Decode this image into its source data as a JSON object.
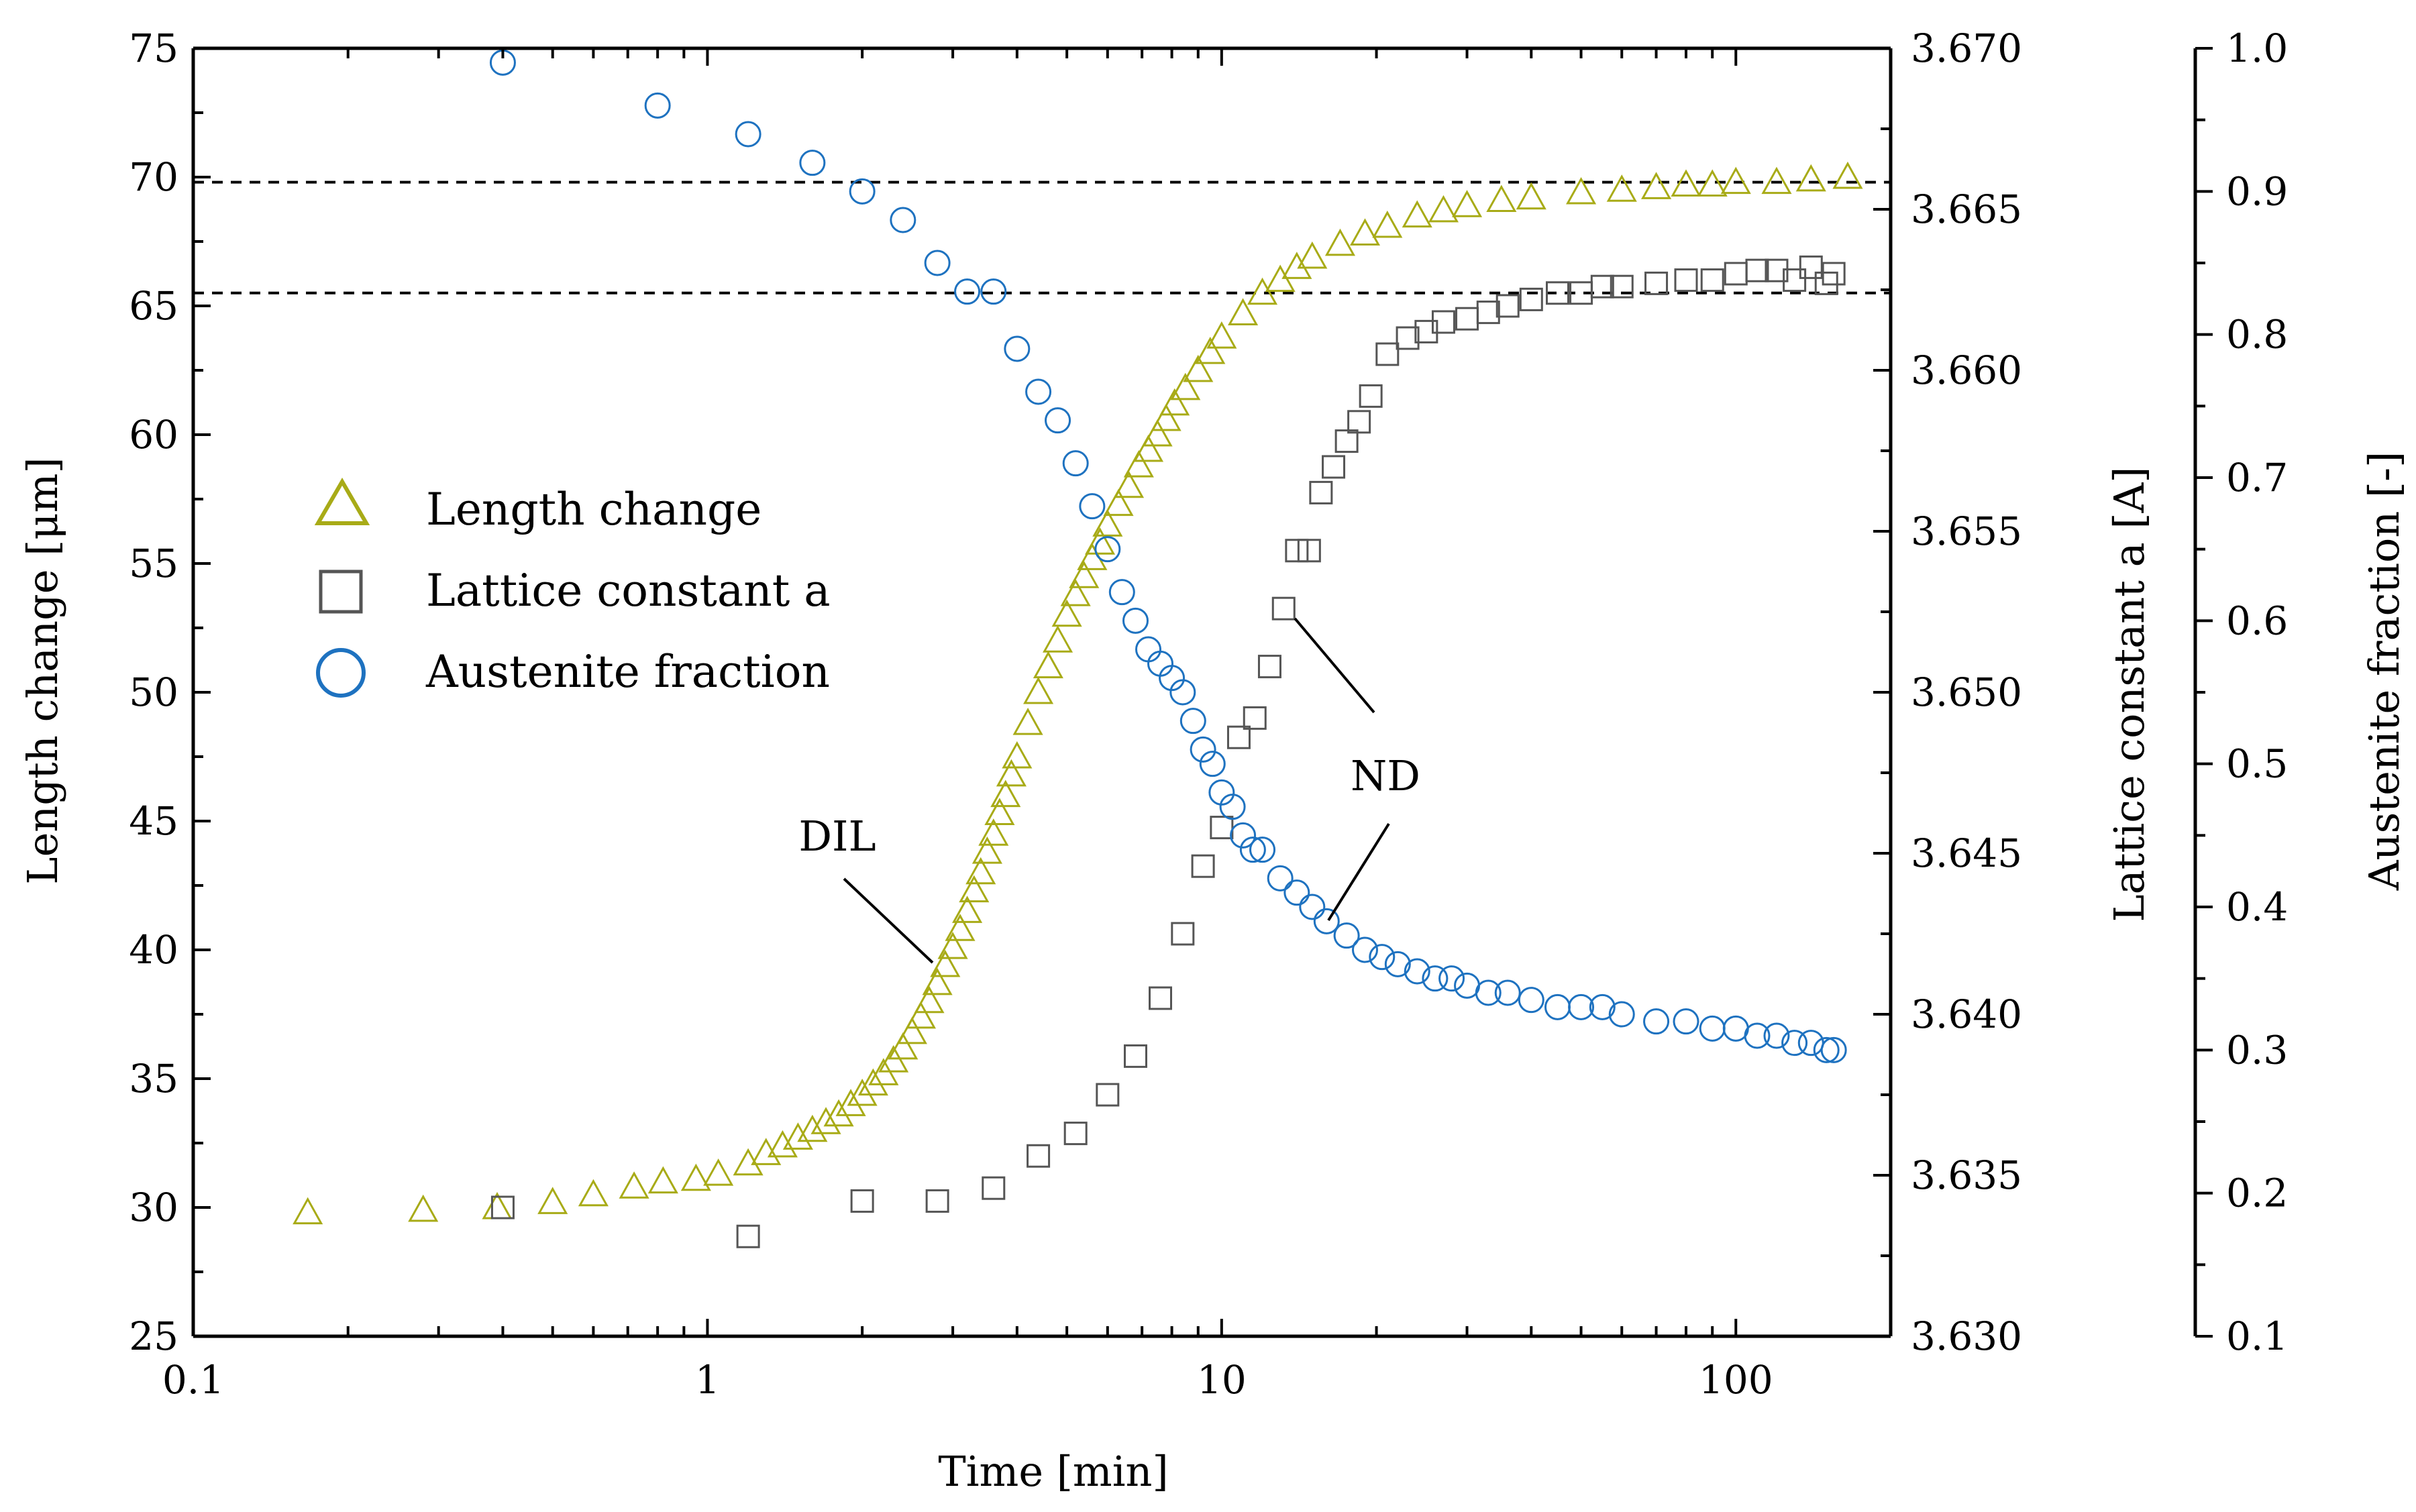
{
  "chart_data": {
    "type": "scatter",
    "xlabel": "Time [min]",
    "ylabel_left": "Length change [μm]",
    "ylabel_right1": "Lattice constant a [A]",
    "ylabel_right2": "Austenite fraction [-]",
    "x_scale": "log",
    "xlim": [
      0.1,
      200
    ],
    "ylim_left": [
      25,
      75
    ],
    "ylim_right1": [
      3.63,
      3.67
    ],
    "ylim_right2": [
      0.1,
      1.0
    ],
    "x_ticks": [
      {
        "v": 0.1,
        "label": "0.1"
      },
      {
        "v": 1,
        "label": "1"
      },
      {
        "v": 10,
        "label": "10"
      },
      {
        "v": 100,
        "label": "100"
      }
    ],
    "y_left_ticks": [
      "25",
      "30",
      "35",
      "40",
      "45",
      "50",
      "55",
      "60",
      "65",
      "70",
      "75"
    ],
    "y_right1_ticks": [
      "3.630",
      "3.635",
      "3.640",
      "3.645",
      "3.650",
      "3.655",
      "3.660",
      "3.665",
      "3.670"
    ],
    "y_right2_ticks": [
      "0.1",
      "0.2",
      "0.3",
      "0.4",
      "0.5",
      "0.6",
      "0.7",
      "0.8",
      "0.9",
      "1.0"
    ],
    "reference_lines_left_axis": [
      69.8,
      65.5
    ],
    "colors": {
      "length_change": "#a8ab17",
      "lattice": "#555555",
      "austenite": "#1e72c0"
    },
    "series": [
      {
        "name": "Length change",
        "axis": "left",
        "marker": "triangle",
        "x": [
          0.167,
          0.28,
          0.39,
          0.5,
          0.6,
          0.72,
          0.82,
          0.95,
          1.05,
          1.2,
          1.3,
          1.4,
          1.5,
          1.6,
          1.7,
          1.8,
          1.9,
          2.0,
          2.1,
          2.2,
          2.3,
          2.4,
          2.5,
          2.6,
          2.7,
          2.8,
          2.9,
          3.0,
          3.1,
          3.2,
          3.3,
          3.4,
          3.5,
          3.6,
          3.7,
          3.8,
          3.9,
          4.0,
          4.2,
          4.4,
          4.6,
          4.8,
          5.0,
          5.2,
          5.4,
          5.6,
          5.8,
          6.0,
          6.3,
          6.6,
          6.9,
          7.2,
          7.5,
          7.8,
          8.1,
          8.5,
          9.0,
          9.5,
          10,
          11,
          12,
          13,
          14,
          15,
          17,
          19,
          21,
          24,
          27,
          30,
          35,
          40,
          50,
          60,
          70,
          80,
          90,
          100,
          120,
          140,
          165
        ],
        "values": [
          29.8,
          29.9,
          30.0,
          30.2,
          30.5,
          30.8,
          31.0,
          31.1,
          31.3,
          31.7,
          32.1,
          32.4,
          32.7,
          33.0,
          33.3,
          33.6,
          34.0,
          34.4,
          34.8,
          35.2,
          35.7,
          36.2,
          36.8,
          37.4,
          38.0,
          38.7,
          39.4,
          40.1,
          40.8,
          41.5,
          42.3,
          43.0,
          43.8,
          44.5,
          45.3,
          46.0,
          46.8,
          47.5,
          48.8,
          50.0,
          51.0,
          52.0,
          53.0,
          53.8,
          54.5,
          55.2,
          55.8,
          56.5,
          57.3,
          58.0,
          58.8,
          59.4,
          60.0,
          60.6,
          61.2,
          61.8,
          62.5,
          63.2,
          63.8,
          64.7,
          65.5,
          66.0,
          66.5,
          66.9,
          67.4,
          67.8,
          68.1,
          68.5,
          68.7,
          68.9,
          69.1,
          69.2,
          69.4,
          69.5,
          69.6,
          69.7,
          69.7,
          69.8,
          69.8,
          69.9,
          70.0
        ]
      },
      {
        "name": "Lattice constant a",
        "axis": "right1",
        "marker": "square",
        "x": [
          0.4,
          1.2,
          2.0,
          2.8,
          3.6,
          4.4,
          5.2,
          6.0,
          6.8,
          7.6,
          8.4,
          9.2,
          10.0,
          10.8,
          11.6,
          12.4,
          13.2,
          14.0,
          14.8,
          15.6,
          16.5,
          17.5,
          18.5,
          19.5,
          21,
          23,
          25,
          27,
          30,
          33,
          36,
          40,
          45,
          50,
          55,
          60,
          70,
          80,
          90,
          100,
          110,
          120,
          130,
          140,
          150,
          155
        ],
        "values": [
          3.634,
          3.6331,
          3.6342,
          3.6342,
          3.6346,
          3.6356,
          3.6363,
          3.6375,
          3.6387,
          3.6405,
          3.6425,
          3.6446,
          3.6458,
          3.6486,
          3.6492,
          3.6508,
          3.6526,
          3.6544,
          3.6544,
          3.6562,
          3.657,
          3.6578,
          3.6584,
          3.6592,
          3.6605,
          3.661,
          3.6612,
          3.6615,
          3.6616,
          3.6618,
          3.662,
          3.6622,
          3.6624,
          3.6624,
          3.6626,
          3.6626,
          3.6627,
          3.6628,
          3.6628,
          3.663,
          3.6631,
          3.6631,
          3.6628,
          3.6632,
          3.6627,
          3.663
        ]
      },
      {
        "name": "Austenite fraction",
        "axis": "right2",
        "marker": "circle",
        "x": [
          0.4,
          0.8,
          1.2,
          1.6,
          2.0,
          2.4,
          2.8,
          3.2,
          3.6,
          4.0,
          4.4,
          4.8,
          5.2,
          5.6,
          6.0,
          6.4,
          6.8,
          7.2,
          7.6,
          8.0,
          8.4,
          8.8,
          9.2,
          9.6,
          10.0,
          10.5,
          11.0,
          11.5,
          12.0,
          13.0,
          14.0,
          15.0,
          16.0,
          17.5,
          19.0,
          20.5,
          22,
          24,
          26,
          28,
          30,
          33,
          36,
          40,
          45,
          50,
          55,
          60,
          70,
          80,
          90,
          100,
          110,
          120,
          130,
          140,
          150,
          155
        ],
        "values": [
          0.99,
          0.96,
          0.94,
          0.92,
          0.9,
          0.88,
          0.85,
          0.83,
          0.83,
          0.79,
          0.76,
          0.74,
          0.71,
          0.68,
          0.65,
          0.62,
          0.6,
          0.58,
          0.57,
          0.56,
          0.55,
          0.53,
          0.51,
          0.5,
          0.48,
          0.47,
          0.45,
          0.44,
          0.44,
          0.42,
          0.41,
          0.4,
          0.39,
          0.38,
          0.37,
          0.365,
          0.36,
          0.355,
          0.35,
          0.35,
          0.345,
          0.34,
          0.34,
          0.335,
          0.33,
          0.33,
          0.33,
          0.325,
          0.32,
          0.32,
          0.315,
          0.315,
          0.31,
          0.31,
          0.305,
          0.305,
          0.3,
          0.3
        ]
      }
    ],
    "annotations": [
      {
        "text": "DIL",
        "x": 2.0,
        "y": 46.8
      },
      {
        "text": "ND",
        "x": 22.0,
        "y": 46.8
      }
    ],
    "legend": {
      "position": "left-middle",
      "entries": [
        "Length change",
        "Lattice constant a",
        "Austenite fraction"
      ]
    }
  }
}
